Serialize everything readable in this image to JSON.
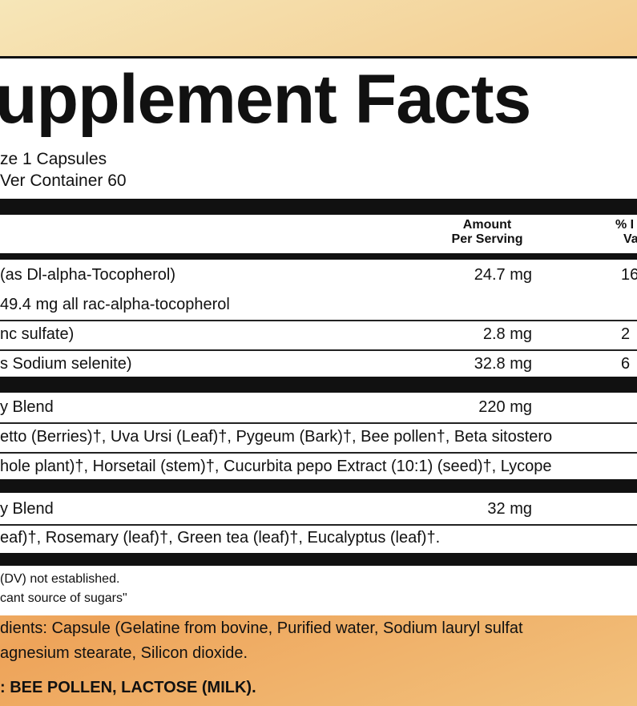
{
  "header": {
    "title": "upplement Facts",
    "serving_size": "ze 1 Capsules",
    "servings": "Ver Container 60"
  },
  "table": {
    "columns": {
      "amount": [
        "Amount",
        "Per Serving"
      ],
      "dv": [
        "% I",
        "Va"
      ]
    },
    "rows": [
      {
        "name": "(as Dl-alpha-Tocopherol)",
        "amount": "24.7 mg",
        "dv": "16"
      },
      {
        "name": "49.4 mg all rac-alpha-tocopherol"
      },
      {
        "name": "nc sulfate)",
        "amount": "2.8 mg",
        "dv": "2"
      },
      {
        "name": "s Sodium selenite)",
        "amount": "32.8 mg",
        "dv": "6"
      },
      {
        "name": "y Blend",
        "amount": "220 mg"
      },
      {
        "name": "etto (Berries)†, Uva Ursi (Leaf)†, Pygeum (Bark)†, Bee pollen†, Beta sitostero"
      },
      {
        "name": "hole plant)†, Horsetail (stem)†, Cucurbita pepo Extract (10:1) (seed)†, Lycope"
      },
      {
        "name": "y Blend",
        "amount": "32 mg"
      },
      {
        "name": "eaf)†, Rosemary (leaf)†, Green tea (leaf)†, Eucalyptus (leaf)†."
      }
    ]
  },
  "footnotes": [
    "(DV) not established.",
    "cant source of sugars\""
  ],
  "other_ingredients": [
    "dients: Capsule (Gelatine from bovine, Purified water, Sodium lauryl sulfat",
    "agnesium stearate, Silicon dioxide."
  ],
  "allergens": ": BEE POLLEN, LACTOSE (MILK)."
}
